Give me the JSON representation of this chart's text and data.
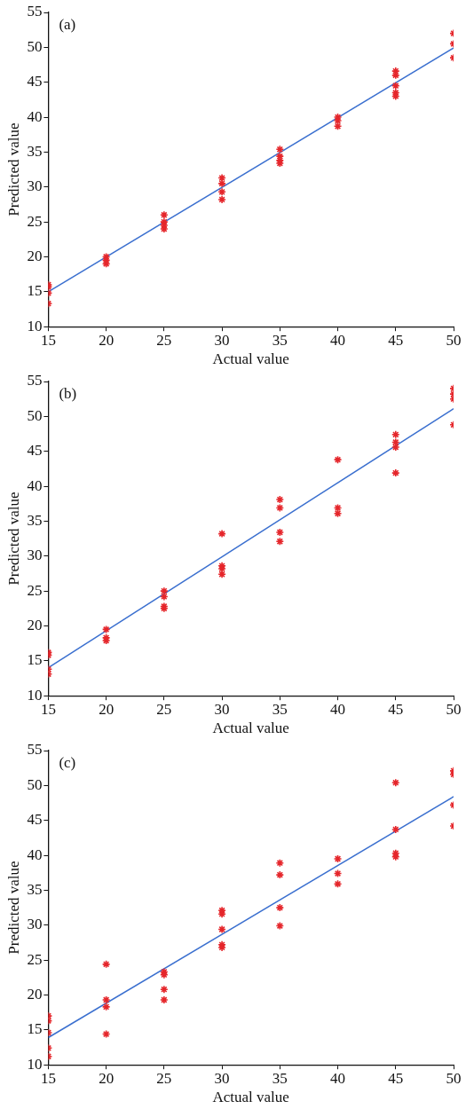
{
  "chart_data": [
    {
      "type": "scatter",
      "annotations": [
        "(a)"
      ],
      "xlabel": "Actual value",
      "ylabel": "Predicted value",
      "xlim": [
        15,
        50
      ],
      "xticks": [
        15,
        20,
        25,
        30,
        35,
        40,
        45,
        50
      ],
      "ylim": [
        10,
        55
      ],
      "yticks": [
        10,
        15,
        20,
        25,
        30,
        35,
        40,
        45,
        50,
        55
      ],
      "grid": false,
      "marker": "cross",
      "series": [
        {
          "type": "scatter",
          "color": "#e5262b",
          "x": [
            15,
            15,
            15,
            15,
            20,
            20,
            20,
            25,
            25,
            25,
            25,
            30,
            30,
            30,
            30,
            35,
            35,
            35,
            35,
            40,
            40,
            40,
            45,
            45,
            45,
            45,
            45,
            50,
            50,
            50
          ],
          "values": [
            16,
            15.7,
            14.8,
            13.3,
            20,
            19.5,
            19,
            26,
            25,
            24.5,
            24,
            31.3,
            30.5,
            29.3,
            28.2,
            35.4,
            34.4,
            33.8,
            33.4,
            40,
            39.5,
            38.7,
            46.6,
            46,
            44.5,
            43.5,
            43,
            52,
            50.5,
            48.5
          ]
        },
        {
          "type": "line",
          "color": "#3a6fcf",
          "x": [
            15,
            50
          ],
          "values": [
            15,
            49.9
          ],
          "marker": "none"
        }
      ]
    },
    {
      "type": "scatter",
      "annotations": [
        "(b)"
      ],
      "xlabel": "Actual value",
      "ylabel": "Predicted value",
      "xlim": [
        15,
        50
      ],
      "xticks": [
        15,
        20,
        25,
        30,
        35,
        40,
        45,
        50
      ],
      "ylim": [
        10,
        55
      ],
      "yticks": [
        10,
        15,
        20,
        25,
        30,
        35,
        40,
        45,
        50,
        55
      ],
      "grid": false,
      "marker": "cross",
      "series": [
        {
          "type": "scatter",
          "color": "#e5262b",
          "x": [
            15,
            15,
            15,
            15,
            20,
            20,
            20,
            25,
            25,
            25,
            25,
            30,
            30,
            30,
            30,
            35,
            35,
            35,
            35,
            40,
            40,
            40,
            45,
            45,
            45,
            45,
            50,
            50,
            50,
            50
          ],
          "values": [
            16.2,
            15.8,
            13.8,
            13.1,
            19.5,
            18.3,
            17.9,
            25,
            24.2,
            22.8,
            22.5,
            33.2,
            28.6,
            28.2,
            27.4,
            38.1,
            36.9,
            33.4,
            32.1,
            43.8,
            36.9,
            36.1,
            47.4,
            46.3,
            45.6,
            41.9,
            54,
            53.2,
            52.5,
            48.8
          ]
        },
        {
          "type": "line",
          "color": "#3a6fcf",
          "x": [
            15,
            50
          ],
          "values": [
            14,
            51.1
          ],
          "marker": "none"
        }
      ]
    },
    {
      "type": "scatter",
      "annotations": [
        "(c)"
      ],
      "xlabel": "Actual value",
      "ylabel": "Predicted value",
      "xlim": [
        15,
        50
      ],
      "xticks": [
        15,
        20,
        25,
        30,
        35,
        40,
        45,
        50
      ],
      "ylim": [
        10,
        55
      ],
      "yticks": [
        10,
        15,
        20,
        25,
        30,
        35,
        40,
        45,
        50,
        55
      ],
      "grid": false,
      "marker": "cross",
      "series": [
        {
          "type": "scatter",
          "color": "#e5262b",
          "x": [
            15,
            15,
            15,
            15,
            15,
            20,
            20,
            20,
            20,
            25,
            25,
            25,
            25,
            30,
            30,
            30,
            30,
            30,
            35,
            35,
            35,
            35,
            40,
            40,
            40,
            45,
            45,
            45,
            45,
            50,
            50,
            50,
            50
          ],
          "values": [
            17,
            16.3,
            14.6,
            12.4,
            11.2,
            24.4,
            19.3,
            18.3,
            14.4,
            23.3,
            22.9,
            20.8,
            19.3,
            32.1,
            31.6,
            29.4,
            27.2,
            26.8,
            38.9,
            37.2,
            32.5,
            29.9,
            39.5,
            37.4,
            35.9,
            50.4,
            43.7,
            40.3,
            39.8,
            52.1,
            51.6,
            47.2,
            44.2
          ]
        },
        {
          "type": "line",
          "color": "#3a6fcf",
          "x": [
            15,
            50
          ],
          "values": [
            13.9,
            48.4
          ],
          "marker": "none"
        }
      ]
    }
  ]
}
